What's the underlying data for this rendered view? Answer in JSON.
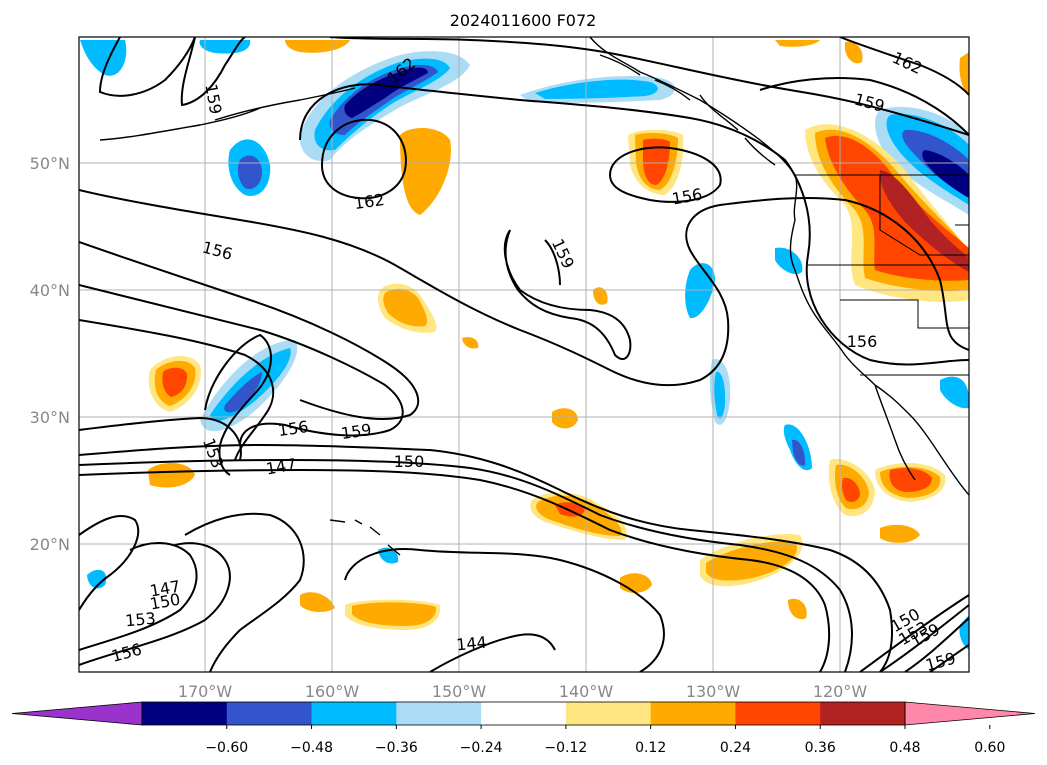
{
  "title": "2024011600 F072",
  "map": {
    "lat_labels": [
      "50°N",
      "40°N",
      "30°N",
      "20°N"
    ],
    "lon_labels": [
      "170°W",
      "160°W",
      "150°W",
      "140°W",
      "130°W",
      "120°W"
    ],
    "contour_labels": [
      "159",
      "162",
      "159",
      "162",
      "156",
      "156",
      "159",
      "156",
      "162",
      "159",
      "153",
      "147",
      "150",
      "156",
      "147",
      "150",
      "153",
      "156",
      "144",
      "150",
      "153",
      "159",
      "159"
    ],
    "fill_colors": {
      "neg_extreme": "#9933cc",
      "neg_060": "#000080",
      "neg_048": "#3355cc",
      "neg_036": "#00bbff",
      "neg_024": "#aaddf5",
      "pos_012": "#ffe680",
      "pos_024": "#ffaa00",
      "pos_036": "#ff4500",
      "pos_048": "#b22222",
      "pos_extreme": "#ff88aa"
    }
  },
  "colorbar": {
    "ticks": [
      "−0.60",
      "−0.48",
      "−0.36",
      "−0.24",
      "−0.12",
      "0.12",
      "0.24",
      "0.36",
      "0.48",
      "0.60"
    ],
    "colors": [
      "#9933cc",
      "#000080",
      "#3355cc",
      "#00bbff",
      "#aaddf5",
      "#ffffff",
      "#ffe680",
      "#ffaa00",
      "#ff4500",
      "#b22222",
      "#ff88aa"
    ]
  }
}
